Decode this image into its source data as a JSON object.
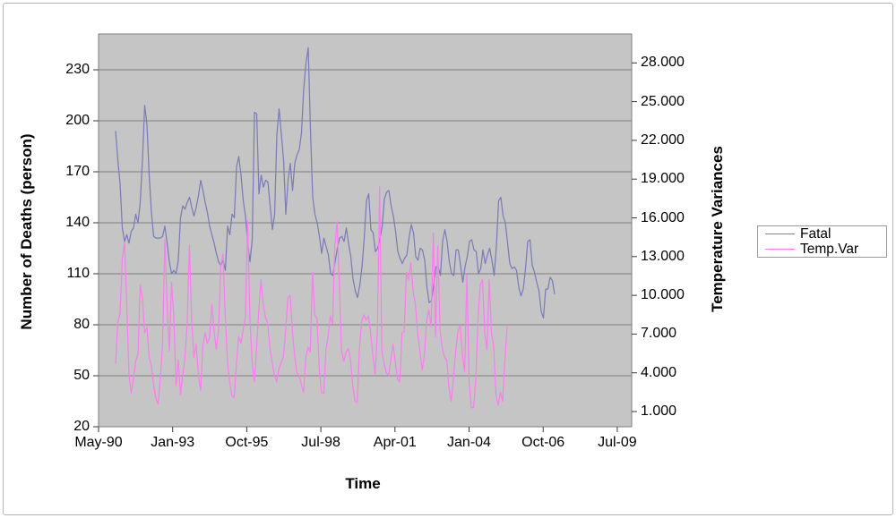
{
  "chart_data": {
    "type": "line",
    "title": "",
    "x_axis": {
      "label": "Time",
      "tick_labels": [
        "May-90",
        "Jan-93",
        "Oct-95",
        "Jul-98",
        "Apr-01",
        "Jan-04",
        "Oct-06",
        "Jul-09"
      ],
      "unit": "months"
    },
    "y_left": {
      "label": "Number of Deaths (person)",
      "tick_labels": [
        "230",
        "200",
        "170",
        "140",
        "110",
        "80",
        "50",
        "20"
      ],
      "range": [
        20,
        250
      ],
      "gridlines": true
    },
    "y_right": {
      "label": "Temperature Variances",
      "tick_labels": [
        "28.000",
        "25.000",
        "22.000",
        "19.000",
        "16.000",
        "13.000",
        "10.000",
        "7.000",
        "4.000",
        "1.000"
      ],
      "range": [
        1,
        30
      ],
      "gridlines": false
    },
    "legend": {
      "position": "right",
      "entries": [
        {
          "label": "Fatal",
          "color": "#7c7cb8"
        },
        {
          "label": "Temp.Var",
          "color": "#fb7df0"
        }
      ]
    },
    "series": [
      {
        "name": "Fatal",
        "axis": "left",
        "color": "#7c7cb8",
        "x_start_frac": 0.032,
        "x_end_frac": 0.8555,
        "sampling": "monthly",
        "values": [
          194,
          177,
          163,
          137,
          129,
          133,
          128,
          135,
          137,
          145,
          140,
          152,
          177,
          209,
          198,
          168,
          146,
          132,
          131,
          131,
          131,
          132,
          138,
          128,
          117,
          110,
          112,
          110,
          118,
          143,
          150,
          148,
          152,
          155,
          149,
          144,
          149,
          156,
          165,
          159,
          152,
          146,
          138,
          133,
          128,
          122,
          117,
          115,
          118,
          112,
          138,
          133,
          145,
          143,
          173,
          179,
          168,
          153,
          144,
          128,
          117,
          130,
          205,
          204,
          157,
          168,
          161,
          165,
          164,
          150,
          136,
          145,
          192,
          207,
          192,
          177,
          145,
          165,
          175,
          159,
          175,
          180,
          183,
          193,
          219,
          234,
          243,
          195,
          155,
          145,
          140,
          132,
          122,
          131,
          126,
          121,
          110,
          109,
          117,
          125,
          131,
          132,
          129,
          137,
          128,
          120,
          107,
          100,
          96,
          103,
          114,
          131,
          153,
          157,
          136,
          134,
          123,
          125,
          130,
          138,
          154,
          158,
          159,
          150,
          144,
          135,
          123,
          119,
          116,
          119,
          121,
          131,
          139,
          134,
          120,
          118,
          125,
          124,
          118,
          102,
          93,
          94,
          103,
          114,
          114,
          109,
          129,
          136,
          129,
          117,
          110,
          109,
          124,
          124,
          115,
          105,
          114,
          120,
          129,
          130,
          124,
          123,
          110,
          113,
          124,
          116,
          121,
          125,
          118,
          109,
          126,
          153,
          155,
          144,
          140,
          128,
          116,
          113,
          114,
          112,
          102,
          97,
          101,
          113,
          129,
          130,
          115,
          111,
          105,
          100,
          88,
          84,
          101,
          101,
          108,
          106,
          98
        ]
      },
      {
        "name": "Temp.Var",
        "axis": "right",
        "color": "#fb7df0",
        "x_start_frac": 0.032,
        "x_end_frac": 0.7664,
        "sampling": "monthly",
        "values": [
          4.7,
          7.9,
          8.6,
          12.8,
          14.1,
          9.3,
          3.8,
          2.4,
          3.6,
          4.9,
          5.5,
          10.8,
          9.8,
          7.1,
          7.5,
          5.2,
          4.5,
          3.0,
          2.0,
          1.6,
          3.6,
          6.3,
          14.3,
          9.3,
          5.7,
          11.0,
          8.3,
          3.0,
          5.0,
          2.3,
          3.8,
          5.2,
          7.8,
          13.9,
          8.1,
          5.2,
          6.2,
          3.9,
          2.6,
          6.1,
          7.1,
          6.3,
          6.7,
          9.3,
          7.3,
          5.8,
          7.3,
          12.3,
          13.2,
          8.3,
          4.8,
          3.3,
          2.2,
          2.1,
          4.8,
          6.8,
          6.3,
          7.3,
          8.3,
          15.8,
          8.3,
          4.8,
          3.3,
          5.8,
          8.8,
          11.2,
          9.3,
          8.3,
          7.8,
          5.9,
          4.8,
          3.8,
          3.3,
          4.3,
          4.8,
          5.2,
          7.3,
          9.8,
          10.0,
          7.3,
          5.3,
          4.0,
          3.8,
          3.1,
          2.5,
          5.2,
          6.0,
          5.6,
          11.8,
          8.5,
          8.2,
          4.3,
          2.5,
          2.4,
          5.8,
          6.9,
          8.4,
          7.8,
          13.9,
          15.7,
          10.9,
          5.7,
          4.9,
          5.6,
          5.9,
          5.0,
          3.0,
          1.8,
          1.7,
          5.9,
          8.0,
          8.5,
          8.1,
          8.4,
          7.1,
          5.3,
          3.9,
          7.3,
          18.4,
          5.7,
          4.7,
          4.0,
          3.8,
          5.0,
          6.2,
          4.8,
          3.5,
          3.3,
          7.1,
          7.2,
          11.8,
          11.2,
          12.5,
          10.3,
          9.3,
          7.1,
          5.7,
          4.2,
          5.3,
          8.0,
          8.9,
          7.6,
          14.8,
          6.8,
          13.8,
          7.3,
          5.9,
          5.2,
          5.0,
          2.8,
          1.8,
          3.6,
          5.7,
          7.2,
          7.7,
          5.4,
          4.1,
          11.6,
          3.3,
          1.3,
          1.3,
          3.6,
          8.2,
          10.8,
          11.2,
          7.1,
          5.8,
          11.2,
          7.1,
          6.0,
          2.3,
          1.5,
          2.5,
          1.8,
          5.0,
          7.6
        ]
      }
    ],
    "style": {
      "plot_bg": "#c5c5c5",
      "gridline": "#7f7f7f",
      "axis_line": "#5a5a5a",
      "tick_color": "#3a3a3a",
      "text_color": "#000000",
      "legend_border": "#9a9a9a",
      "frame_border": "#b5b5b5"
    }
  }
}
